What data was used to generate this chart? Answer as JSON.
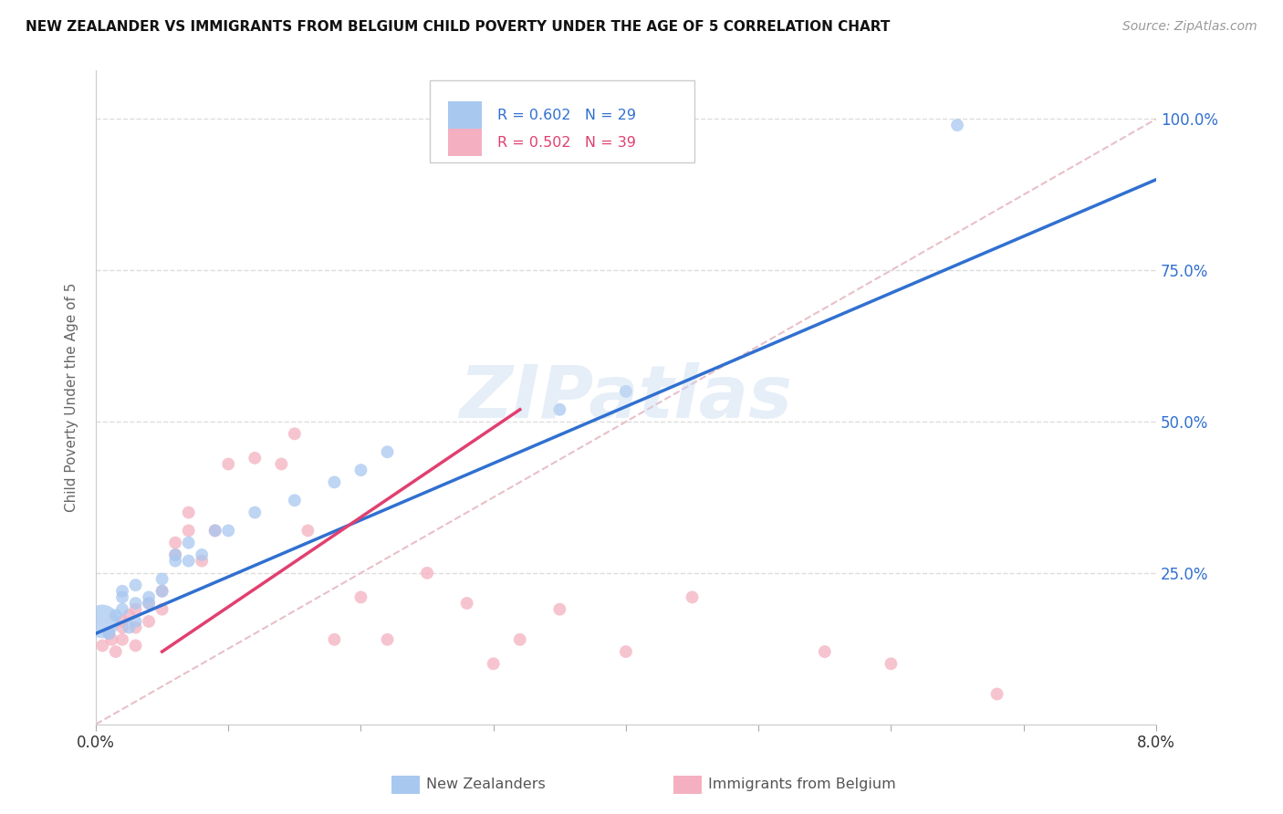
{
  "title": "NEW ZEALANDER VS IMMIGRANTS FROM BELGIUM CHILD POVERTY UNDER THE AGE OF 5 CORRELATION CHART",
  "source": "Source: ZipAtlas.com",
  "ylabel": "Child Poverty Under the Age of 5",
  "ytick_values": [
    0.0,
    0.25,
    0.5,
    0.75,
    1.0
  ],
  "ytick_labels": [
    "",
    "25.0%",
    "50.0%",
    "75.0%",
    "100.0%"
  ],
  "xlim": [
    0.0,
    0.08
  ],
  "ylim": [
    0.0,
    1.08
  ],
  "watermark": "ZIPatlas",
  "legend_nz_r": "R = 0.602",
  "legend_nz_n": "N = 29",
  "legend_be_r": "R = 0.502",
  "legend_be_n": "N = 39",
  "legend_nz_label": "New Zealanders",
  "legend_be_label": "Immigrants from Belgium",
  "nz_color": "#a8c8f0",
  "be_color": "#f4b0c0",
  "nz_line_color": "#3070d0",
  "be_line_color": "#e04070",
  "diagonal_color": "#d0d0d0",
  "nz_line_x0": 0.0,
  "nz_line_y0": 0.15,
  "nz_line_x1": 0.08,
  "nz_line_y1": 0.9,
  "be_line_x0": 0.005,
  "be_line_y0": 0.12,
  "be_line_x1": 0.032,
  "be_line_y1": 0.52,
  "nz_x": [
    0.0005,
    0.001,
    0.0015,
    0.002,
    0.002,
    0.002,
    0.0025,
    0.003,
    0.003,
    0.003,
    0.004,
    0.004,
    0.005,
    0.005,
    0.006,
    0.006,
    0.007,
    0.007,
    0.008,
    0.009,
    0.01,
    0.012,
    0.015,
    0.018,
    0.02,
    0.022,
    0.035,
    0.04,
    0.065
  ],
  "nz_y": [
    0.17,
    0.15,
    0.18,
    0.19,
    0.21,
    0.22,
    0.16,
    0.2,
    0.23,
    0.17,
    0.21,
    0.2,
    0.22,
    0.24,
    0.27,
    0.28,
    0.27,
    0.3,
    0.28,
    0.32,
    0.32,
    0.35,
    0.37,
    0.4,
    0.42,
    0.45,
    0.52,
    0.55,
    0.99
  ],
  "nz_sizes": [
    700,
    100,
    100,
    100,
    100,
    100,
    100,
    100,
    100,
    100,
    100,
    100,
    100,
    100,
    100,
    100,
    100,
    100,
    100,
    100,
    100,
    100,
    100,
    100,
    100,
    100,
    100,
    100,
    100
  ],
  "be_x": [
    0.0005,
    0.001,
    0.0012,
    0.0015,
    0.002,
    0.002,
    0.002,
    0.0025,
    0.003,
    0.003,
    0.003,
    0.004,
    0.004,
    0.005,
    0.005,
    0.006,
    0.006,
    0.007,
    0.007,
    0.008,
    0.009,
    0.01,
    0.012,
    0.014,
    0.015,
    0.016,
    0.018,
    0.02,
    0.022,
    0.025,
    0.028,
    0.03,
    0.032,
    0.035,
    0.04,
    0.045,
    0.055,
    0.06,
    0.068
  ],
  "be_y": [
    0.13,
    0.15,
    0.14,
    0.12,
    0.16,
    0.17,
    0.14,
    0.18,
    0.19,
    0.16,
    0.13,
    0.2,
    0.17,
    0.22,
    0.19,
    0.28,
    0.3,
    0.32,
    0.35,
    0.27,
    0.32,
    0.43,
    0.44,
    0.43,
    0.48,
    0.32,
    0.14,
    0.21,
    0.14,
    0.25,
    0.2,
    0.1,
    0.14,
    0.19,
    0.12,
    0.21,
    0.12,
    0.1,
    0.05
  ],
  "be_sizes": [
    100,
    100,
    100,
    100,
    100,
    100,
    100,
    100,
    100,
    100,
    100,
    100,
    100,
    100,
    100,
    100,
    100,
    100,
    100,
    100,
    100,
    100,
    100,
    100,
    100,
    100,
    100,
    100,
    100,
    100,
    100,
    100,
    100,
    100,
    100,
    100,
    100,
    100,
    100
  ],
  "grid_color": "#dddddd",
  "bg_color": "#ffffff"
}
